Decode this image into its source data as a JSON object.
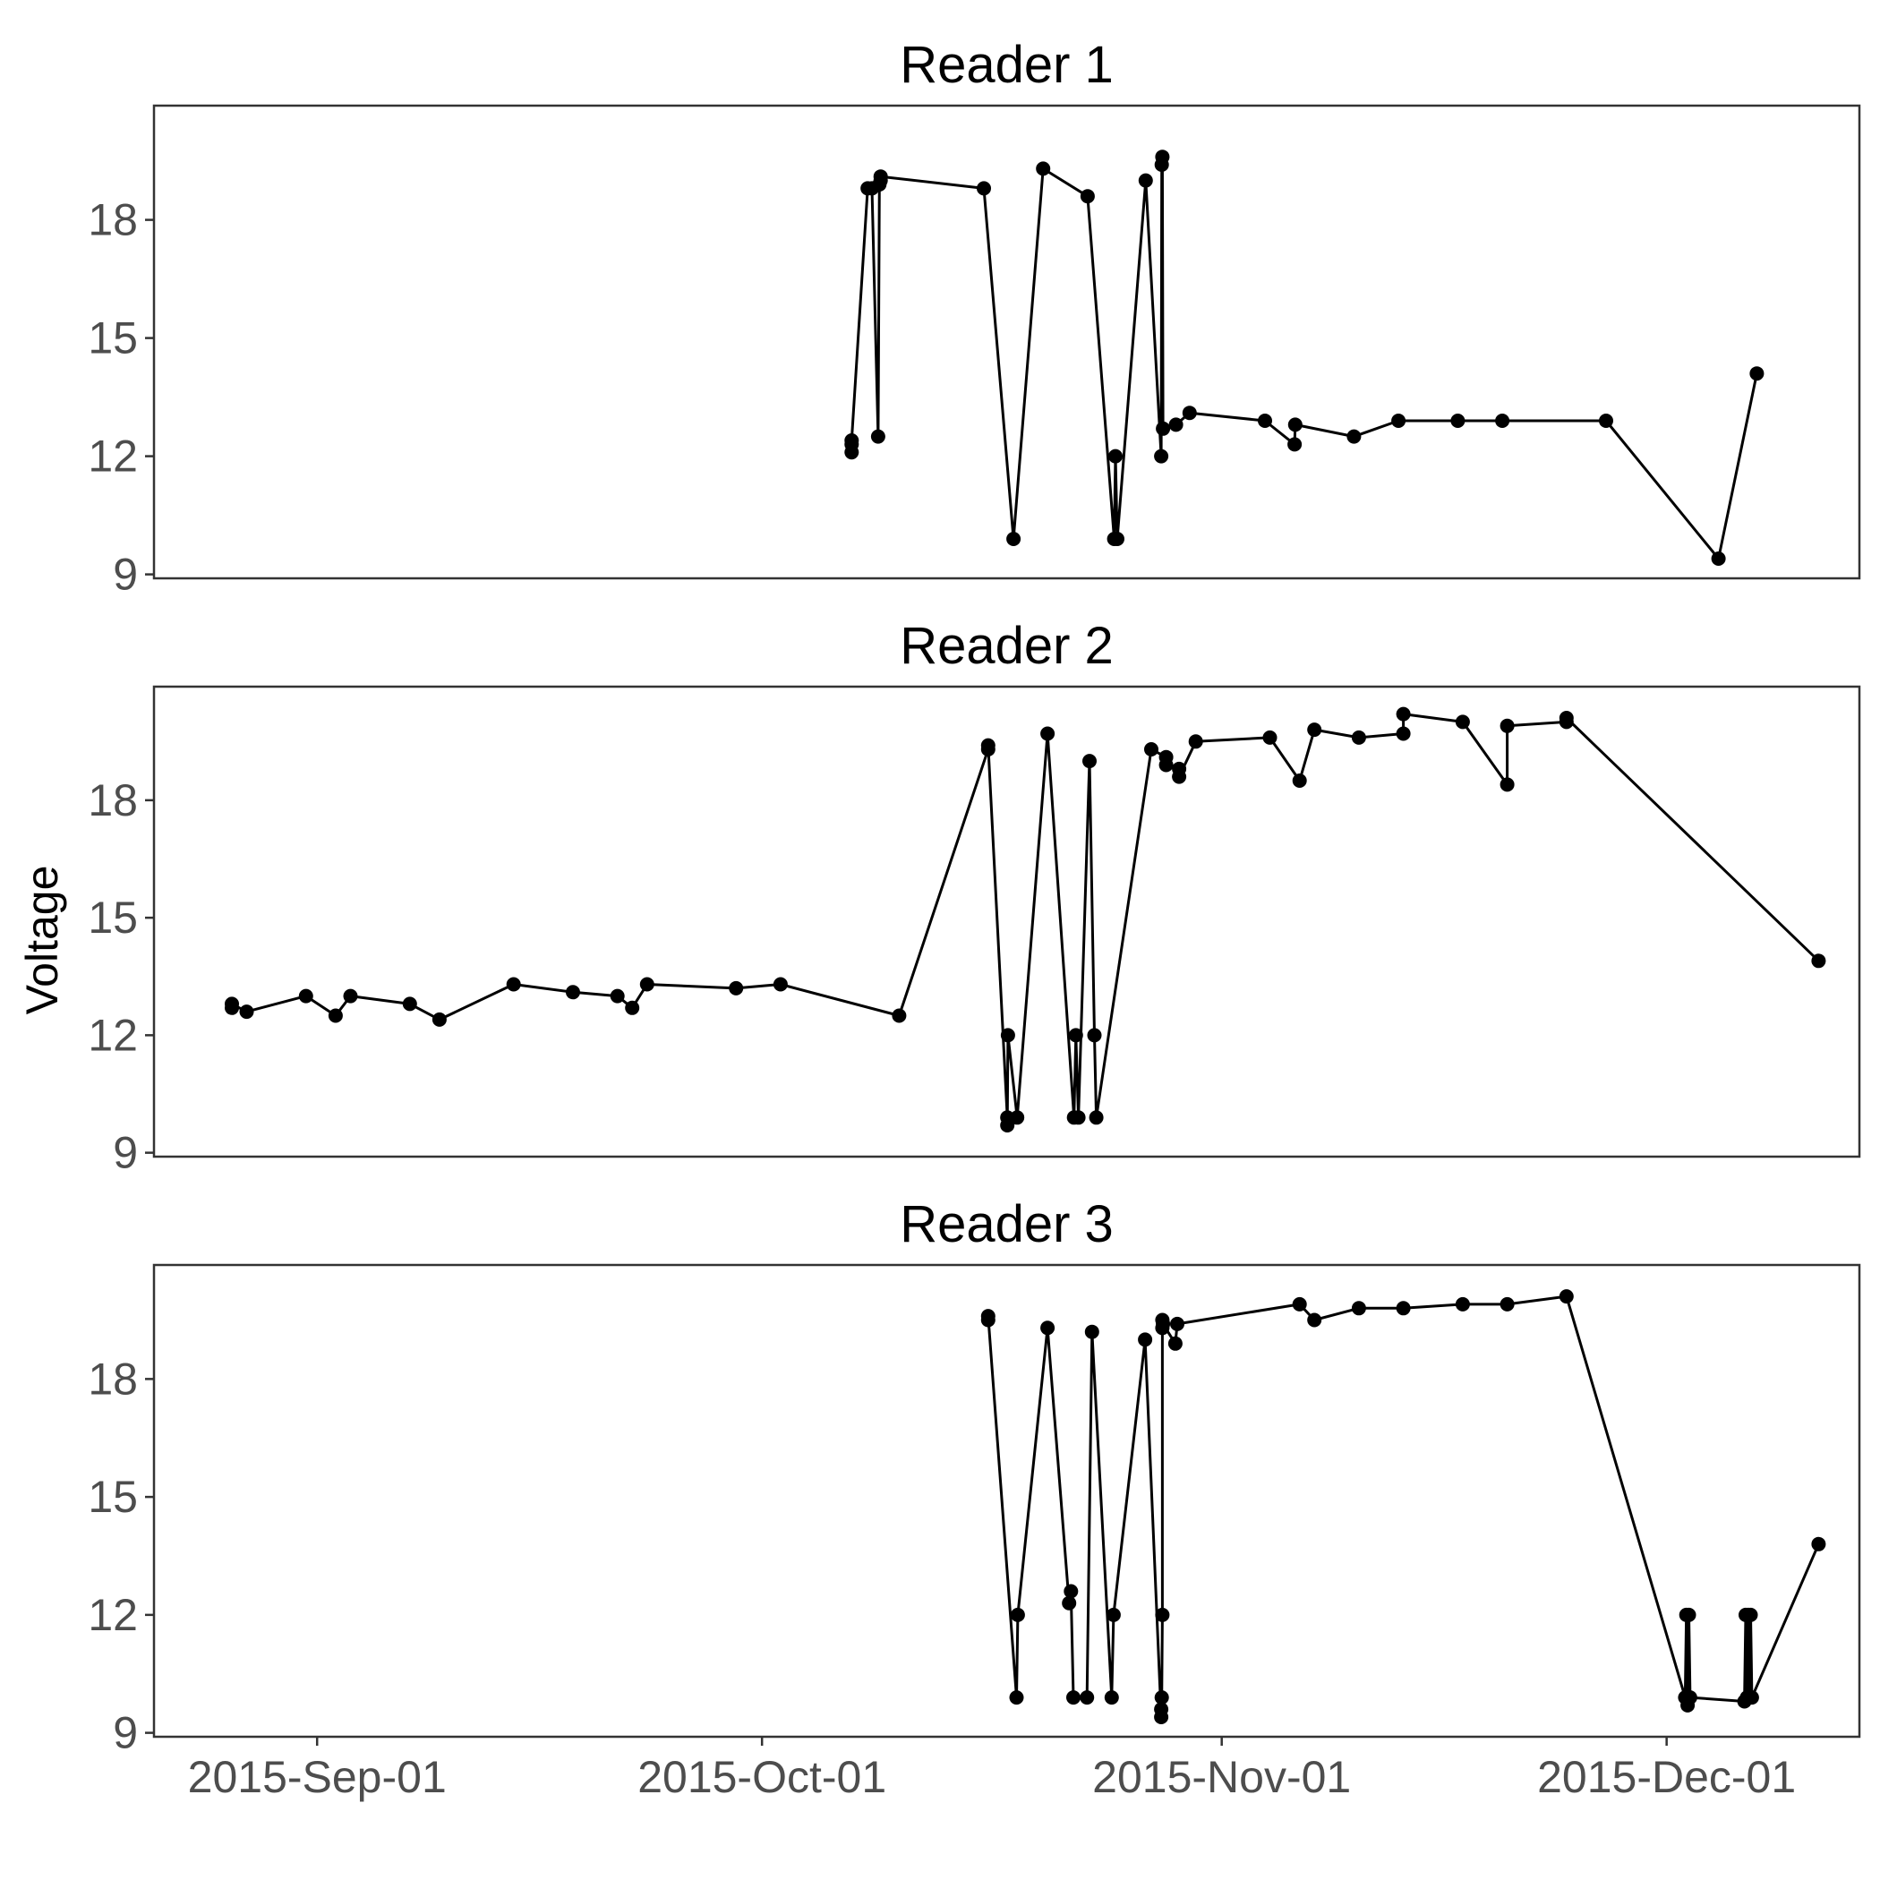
{
  "chart_data": {
    "type": "line",
    "ylabel": "Voltage",
    "x_range": [
      "2015-08-21",
      "2015-12-14"
    ],
    "y_range": [
      8.9,
      20.9
    ],
    "y_ticks": [
      9,
      12,
      15,
      18
    ],
    "x_ticks": [
      {
        "date": "2015-09-01",
        "label": "2015-Sep-01"
      },
      {
        "date": "2015-10-01",
        "label": "2015-Oct-01"
      },
      {
        "date": "2015-11-01",
        "label": "2015-Nov-01"
      },
      {
        "date": "2015-12-01",
        "label": "2015-Dec-01"
      }
    ],
    "grid": false,
    "colors": {
      "series": "#000000",
      "axis": "#333333",
      "tick_label": "#4d4d4d"
    },
    "panels": [
      {
        "title": "Reader 1",
        "points": [
          [
            "2015-10-07T01:00",
            12.1
          ],
          [
            "2015-10-07T01:00",
            12.3
          ],
          [
            "2015-10-07T01:00",
            12.4
          ],
          [
            "2015-10-08T03:00",
            18.8
          ],
          [
            "2015-10-08T10:00",
            18.8
          ],
          [
            "2015-10-08T20:00",
            12.5
          ],
          [
            "2015-10-08T22:00",
            18.9
          ],
          [
            "2015-10-09T00:00",
            19.0
          ],
          [
            "2015-10-09T00:00",
            19.1
          ],
          [
            "2015-10-15T23:00",
            18.8
          ],
          [
            "2015-10-17T23:00",
            9.9
          ],
          [
            "2015-10-19T23:00",
            19.3
          ],
          [
            "2015-10-22T23:00",
            18.6
          ],
          [
            "2015-10-24T18:00",
            9.9
          ],
          [
            "2015-10-24T20:00",
            12.0
          ],
          [
            "2015-10-24T23:00",
            9.9
          ],
          [
            "2015-10-26T21:00",
            19.0
          ],
          [
            "2015-10-27T22:00",
            12.0
          ],
          [
            "2015-10-27T23:00",
            19.4
          ],
          [
            "2015-10-28T00:00",
            19.6
          ],
          [
            "2015-10-28T01:00",
            12.7
          ],
          [
            "2015-10-28T22:00",
            12.8
          ],
          [
            "2015-10-29T20:00",
            13.1
          ],
          [
            "2015-11-03T22:00",
            12.9
          ],
          [
            "2015-11-05T22:00",
            12.3
          ],
          [
            "2015-11-05T23:00",
            12.8
          ],
          [
            "2015-11-09T22:00",
            12.5
          ],
          [
            "2015-11-12T22:00",
            12.9
          ],
          [
            "2015-11-16T22:00",
            12.9
          ],
          [
            "2015-11-19T22:00",
            12.9
          ],
          [
            "2015-11-26T22:00",
            12.9
          ],
          [
            "2015-12-04T12:00",
            9.4
          ],
          [
            "2015-12-07T02:00",
            14.1
          ]
        ]
      },
      {
        "title": "Reader 2",
        "points": [
          [
            "2015-08-26T06:00",
            12.7
          ],
          [
            "2015-08-26T06:00",
            12.8
          ],
          [
            "2015-08-27T06:00",
            12.6
          ],
          [
            "2015-08-31T06:00",
            13.0
          ],
          [
            "2015-09-02T06:00",
            12.5
          ],
          [
            "2015-09-03T06:00",
            13.0
          ],
          [
            "2015-09-07T06:00",
            12.8
          ],
          [
            "2015-09-09T06:00",
            12.4
          ],
          [
            "2015-09-14T06:00",
            13.3
          ],
          [
            "2015-09-18T06:00",
            13.1
          ],
          [
            "2015-09-21T06:00",
            13.0
          ],
          [
            "2015-09-22T06:00",
            12.7
          ],
          [
            "2015-09-23T06:00",
            13.3
          ],
          [
            "2015-09-29T06:00",
            13.2
          ],
          [
            "2015-10-02T06:00",
            13.3
          ],
          [
            "2015-10-10T06:00",
            12.5
          ],
          [
            "2015-10-16T06:00",
            19.3
          ],
          [
            "2015-10-16T06:00",
            19.4
          ],
          [
            "2015-10-17T13:00",
            9.9
          ],
          [
            "2015-10-17T13:00",
            9.7
          ],
          [
            "2015-10-17T14:00",
            12.0
          ],
          [
            "2015-10-18T05:00",
            9.9
          ],
          [
            "2015-10-20T06:00",
            19.7
          ],
          [
            "2015-10-22T01:00",
            9.9
          ],
          [
            "2015-10-22T04:00",
            12.0
          ],
          [
            "2015-10-22T08:00",
            9.9
          ],
          [
            "2015-10-23T02:00",
            19.0
          ],
          [
            "2015-10-23T10:00",
            12.0
          ],
          [
            "2015-10-23T13:00",
            9.9
          ],
          [
            "2015-10-27T06:00",
            19.3
          ],
          [
            "2015-10-28T06:00",
            19.1
          ],
          [
            "2015-10-28T06:00",
            18.9
          ],
          [
            "2015-10-29T03:00",
            18.8
          ],
          [
            "2015-10-29T03:00",
            18.6
          ],
          [
            "2015-10-30T06:00",
            19.5
          ],
          [
            "2015-11-04T06:00",
            19.6
          ],
          [
            "2015-11-06T06:00",
            18.5
          ],
          [
            "2015-11-07T06:00",
            19.8
          ],
          [
            "2015-11-10T06:00",
            19.6
          ],
          [
            "2015-11-13T06:00",
            19.7
          ],
          [
            "2015-11-13T06:00",
            20.2
          ],
          [
            "2015-11-17T06:00",
            20.0
          ],
          [
            "2015-11-20T06:00",
            18.4
          ],
          [
            "2015-11-20T06:00",
            19.9
          ],
          [
            "2015-11-24T06:00",
            20.0
          ],
          [
            "2015-11-24T06:00",
            20.1
          ],
          [
            "2015-12-11T06:00",
            13.9
          ]
        ]
      },
      {
        "title": "Reader 3",
        "points": [
          [
            "2015-10-16T06:00",
            19.5
          ],
          [
            "2015-10-16T06:00",
            19.6
          ],
          [
            "2015-10-18T04:00",
            9.9
          ],
          [
            "2015-10-18T06:00",
            12.0
          ],
          [
            "2015-10-20T06:00",
            19.3
          ],
          [
            "2015-10-21T17:00",
            12.3
          ],
          [
            "2015-10-21T20:00",
            12.6
          ],
          [
            "2015-10-22T00:00",
            9.9
          ],
          [
            "2015-10-22T22:00",
            9.9
          ],
          [
            "2015-10-23T06:00",
            19.2
          ],
          [
            "2015-10-24T14:00",
            9.9
          ],
          [
            "2015-10-24T17:00",
            12.0
          ],
          [
            "2015-10-26T20:00",
            19.0
          ],
          [
            "2015-10-27T22:00",
            9.4
          ],
          [
            "2015-10-27T22:00",
            9.6
          ],
          [
            "2015-10-27T23:00",
            9.9
          ],
          [
            "2015-10-28T00:00",
            12.0
          ],
          [
            "2015-10-28T00:00",
            19.3
          ],
          [
            "2015-10-28T00:00",
            19.5
          ],
          [
            "2015-10-28T01:00",
            19.4
          ],
          [
            "2015-10-28T21:00",
            18.9
          ],
          [
            "2015-10-29T00:00",
            19.4
          ],
          [
            "2015-11-06T06:00",
            19.9
          ],
          [
            "2015-11-07T06:00",
            19.5
          ],
          [
            "2015-11-10T06:00",
            19.8
          ],
          [
            "2015-11-13T06:00",
            19.8
          ],
          [
            "2015-11-17T06:00",
            19.9
          ],
          [
            "2015-11-20T06:00",
            19.9
          ],
          [
            "2015-11-24T06:00",
            20.1
          ],
          [
            "2015-12-02T06:00",
            9.9
          ],
          [
            "2015-12-02T08:00",
            12.0
          ],
          [
            "2015-12-02T10:00",
            9.7
          ],
          [
            "2015-12-02T12:00",
            12.0
          ],
          [
            "2015-12-02T14:00",
            9.9
          ],
          [
            "2015-12-06T06:00",
            9.8
          ],
          [
            "2015-12-06T08:00",
            12.0
          ],
          [
            "2015-12-06T10:00",
            9.9
          ],
          [
            "2015-12-06T12:00",
            12.0
          ],
          [
            "2015-12-06T14:00",
            9.9
          ],
          [
            "2015-12-06T16:00",
            12.0
          ],
          [
            "2015-12-06T18:00",
            9.9
          ],
          [
            "2015-12-11T06:00",
            13.8
          ]
        ]
      }
    ]
  }
}
